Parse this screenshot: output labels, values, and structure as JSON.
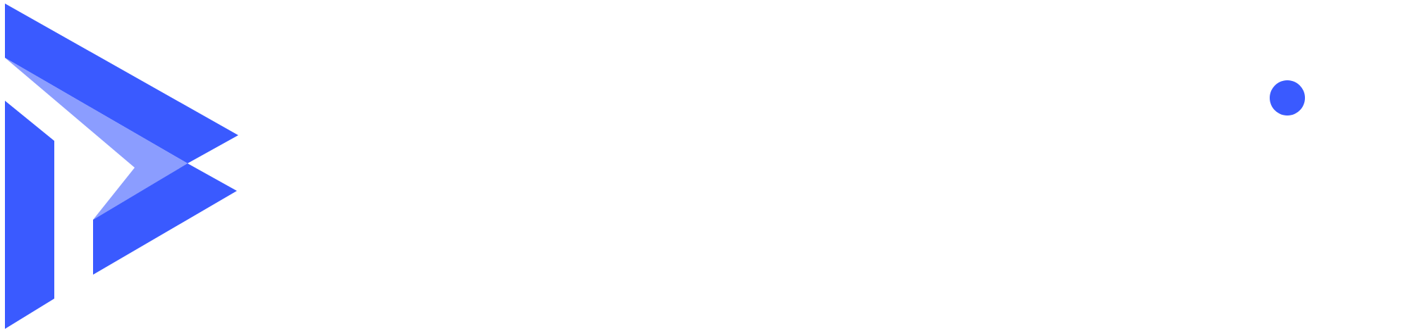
{
  "logo": {
    "mark_name": "brand-logo-mark",
    "colors": {
      "primary": "#3a5aff",
      "secondary": "#8b9dff",
      "background": "#ffffff"
    },
    "icon": "play-arrow-d-logo-icon"
  },
  "accent": {
    "icon": "blue-dot-icon",
    "color": "#3a5aff"
  }
}
